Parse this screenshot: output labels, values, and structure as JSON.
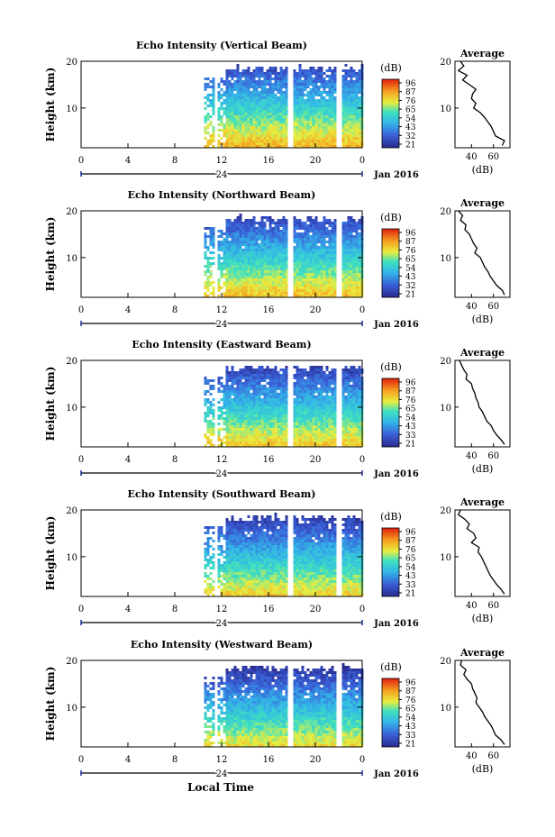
{
  "xlabel": "Local Time",
  "panels": [
    {
      "title": "Echo Intensity (Vertical Beam)",
      "ylabel": "Height (km)",
      "cbar_unit": "(dB)",
      "cbar_ticks": [
        "96",
        "87",
        "76",
        "65",
        "54",
        "43",
        "32",
        "21"
      ],
      "avg_title": "Average",
      "avg_xlabel": "(dB)",
      "avg_xticks": [
        "40",
        "60"
      ],
      "avg_yticks": [
        "20",
        "10"
      ],
      "yticks": [
        "20",
        "10"
      ],
      "xticks": [
        "0",
        "4",
        "8",
        "12",
        "16",
        "20",
        "0"
      ],
      "day_label": "24",
      "date_label": "Jan 2016"
    },
    {
      "title": "Echo Intensity (Northward Beam)",
      "ylabel": "Height (km)",
      "cbar_unit": "(dB)",
      "cbar_ticks": [
        "96",
        "87",
        "76",
        "65",
        "54",
        "43",
        "32",
        "21"
      ],
      "avg_title": "Average",
      "avg_xlabel": "(dB)",
      "avg_xticks": [
        "40",
        "60"
      ],
      "avg_yticks": [
        "20",
        "10"
      ],
      "yticks": [
        "20",
        "10"
      ],
      "xticks": [
        "0",
        "4",
        "8",
        "12",
        "16",
        "20",
        "0"
      ],
      "day_label": "24",
      "date_label": "Jan 2016"
    },
    {
      "title": "Echo Intensity (Eastward Beam)",
      "ylabel": "Height (km)",
      "cbar_unit": "(dB)",
      "cbar_ticks": [
        "96",
        "87",
        "76",
        "65",
        "54",
        "43",
        "33",
        "21"
      ],
      "avg_title": "Average",
      "avg_xlabel": "(dB)",
      "avg_xticks": [
        "40",
        "60"
      ],
      "avg_yticks": [
        "20",
        "10"
      ],
      "yticks": [
        "20",
        "10"
      ],
      "xticks": [
        "0",
        "4",
        "8",
        "12",
        "16",
        "20",
        "0"
      ],
      "day_label": "24",
      "date_label": "Jan 2016"
    },
    {
      "title": "Echo Intensity (Southward Beam)",
      "ylabel": "Height (km)",
      "cbar_unit": "(dB)",
      "cbar_ticks": [
        "96",
        "87",
        "76",
        "65",
        "54",
        "43",
        "33",
        "21"
      ],
      "avg_title": "Average",
      "avg_xlabel": "(dB)",
      "avg_xticks": [
        "40",
        "60"
      ],
      "avg_yticks": [
        "20",
        "10"
      ],
      "yticks": [
        "20",
        "10"
      ],
      "xticks": [
        "0",
        "4",
        "8",
        "12",
        "16",
        "20",
        "0"
      ],
      "day_label": "24",
      "date_label": "Jan 2016"
    },
    {
      "title": "Echo Intensity (Westward Beam)",
      "ylabel": "Height (km)",
      "cbar_unit": "(dB)",
      "cbar_ticks": [
        "96",
        "87",
        "76",
        "65",
        "54",
        "43",
        "33",
        "21"
      ],
      "avg_title": "Average",
      "avg_xlabel": "(dB)",
      "avg_xticks": [
        "40",
        "60"
      ],
      "avg_yticks": [
        "20",
        "10"
      ],
      "yticks": [
        "20",
        "10"
      ],
      "xticks": [
        "0",
        "4",
        "8",
        "12",
        "16",
        "20",
        "0"
      ],
      "day_label": "24",
      "date_label": "Jan 2016"
    }
  ],
  "chart_data": {
    "type": "heatmap",
    "x_range_hours": [
      0,
      24
    ],
    "y_range_km": [
      1.5,
      20
    ],
    "color_range_db": [
      21,
      96
    ],
    "data_start_hour": 10.5,
    "gaps_hours": [
      [
        11.2,
        11.6
      ],
      [
        17.6,
        18.0
      ],
      [
        21.7,
        22.2
      ]
    ],
    "average_profile_x_range_db": [
      25,
      75
    ],
    "average_profiles": [
      {
        "height_km": [
          20,
          19,
          18,
          17,
          16,
          15,
          14,
          13,
          12,
          11,
          10,
          9,
          8,
          7,
          6,
          5,
          4,
          3,
          2
        ],
        "db": [
          30,
          33,
          28,
          36,
          32,
          38,
          44,
          41,
          40,
          44,
          42,
          48,
          52,
          55,
          58,
          60,
          62,
          70,
          68
        ]
      },
      {
        "height_km": [
          20,
          19,
          18,
          17,
          16,
          15,
          14,
          13,
          12,
          11,
          10,
          9,
          8,
          7,
          6,
          5,
          4,
          3,
          2
        ],
        "db": [
          28,
          32,
          30,
          35,
          34,
          38,
          40,
          42,
          45,
          43,
          48,
          50,
          52,
          55,
          57,
          60,
          63,
          68,
          70
        ]
      },
      {
        "height_km": [
          20,
          19,
          18,
          17,
          16,
          15,
          14,
          13,
          12,
          11,
          10,
          9,
          8,
          7,
          6,
          5,
          4,
          3,
          2
        ],
        "db": [
          29,
          31,
          33,
          36,
          35,
          40,
          41,
          43,
          44,
          46,
          47,
          50,
          52,
          54,
          58,
          60,
          63,
          67,
          70
        ]
      },
      {
        "height_km": [
          20,
          19,
          18,
          17,
          16,
          15,
          14,
          13,
          12,
          11,
          10,
          9,
          8,
          7,
          6,
          5,
          4,
          3,
          2
        ],
        "db": [
          30,
          28,
          34,
          38,
          36,
          42,
          44,
          40,
          47,
          46,
          49,
          51,
          53,
          55,
          57,
          60,
          63,
          67,
          70
        ]
      },
      {
        "height_km": [
          20,
          19,
          18,
          17,
          16,
          15,
          14,
          13,
          12,
          11,
          10,
          9,
          8,
          7,
          6,
          5,
          4,
          3,
          2
        ],
        "db": [
          31,
          30,
          35,
          33,
          36,
          40,
          41,
          43,
          45,
          44,
          47,
          50,
          52,
          55,
          58,
          60,
          62,
          67,
          70
        ]
      }
    ]
  }
}
